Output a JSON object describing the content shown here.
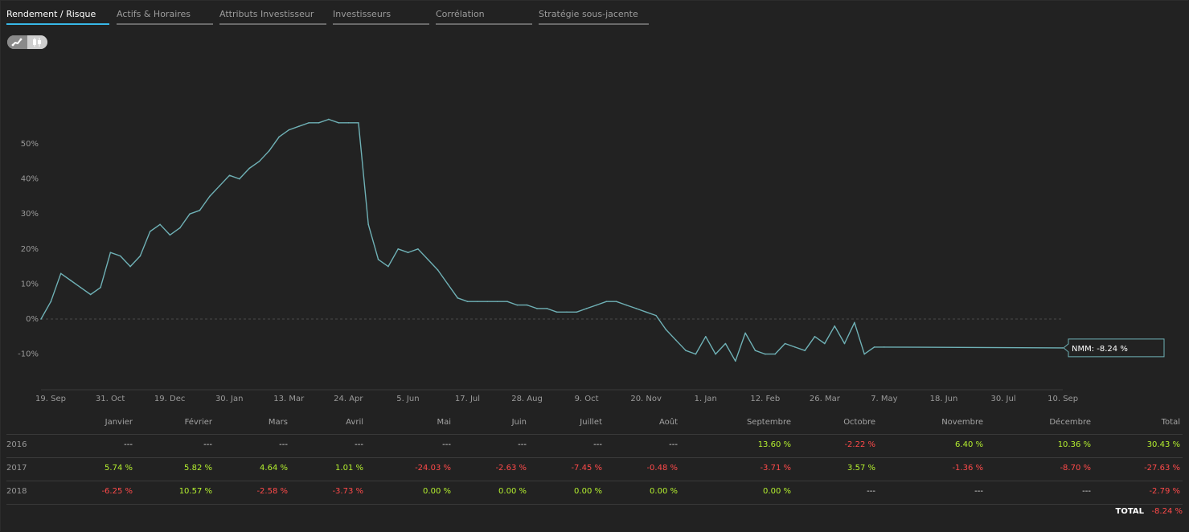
{
  "tabs": [
    {
      "label": "Rendement / Risque",
      "active": true
    },
    {
      "label": "Actifs & Horaires",
      "active": false
    },
    {
      "label": "Attributs Investisseur",
      "active": false
    },
    {
      "label": "Investisseurs",
      "active": false
    },
    {
      "label": "Corrélation",
      "active": false
    },
    {
      "label": "Stratégie sous-jacente",
      "active": false
    }
  ],
  "toggle": {
    "options": [
      "line-chart-icon",
      "candlestick-icon"
    ],
    "selected": "line-chart-icon"
  },
  "colors": {
    "line": "#6fb1b6",
    "positive": "#b5f12f",
    "negative": "#ff4a4a",
    "accent": "#38b8e8"
  },
  "chart_data": {
    "type": "line",
    "series": [
      {
        "x": [
          "2016-09-19",
          "2016-09-26",
          "2016-10-03",
          "2016-10-10",
          "2016-10-17",
          "2016-10-24",
          "2016-10-31",
          "2016-11-07",
          "2016-11-14",
          "2016-11-21",
          "2016-11-28",
          "2016-12-05",
          "2016-12-12",
          "2016-12-19",
          "2016-12-26",
          "2017-01-02",
          "2017-01-09",
          "2017-01-16",
          "2017-01-23",
          "2017-01-30",
          "2017-02-06",
          "2017-02-13",
          "2017-02-20",
          "2017-02-27",
          "2017-03-06",
          "2017-03-13",
          "2017-03-20",
          "2017-03-27",
          "2017-04-03",
          "2017-04-10",
          "2017-04-17",
          "2017-04-24",
          "2017-05-01",
          "2017-05-08",
          "2017-05-15",
          "2017-05-22",
          "2017-05-29",
          "2017-06-05",
          "2017-06-12",
          "2017-06-19",
          "2017-06-26",
          "2017-07-03",
          "2017-07-10",
          "2017-07-17",
          "2017-07-24",
          "2017-07-31",
          "2017-08-07",
          "2017-08-14",
          "2017-08-21",
          "2017-08-28",
          "2017-09-04",
          "2017-09-11",
          "2017-09-18",
          "2017-09-25",
          "2017-10-02",
          "2017-10-09",
          "2017-10-16",
          "2017-10-23",
          "2017-10-30",
          "2017-11-06",
          "2017-11-13",
          "2017-11-20",
          "2017-11-27",
          "2017-12-04",
          "2017-12-11",
          "2017-12-18",
          "2017-12-25",
          "2018-01-01",
          "2018-01-08",
          "2018-01-15",
          "2018-01-22",
          "2018-01-29",
          "2018-02-05",
          "2018-02-12",
          "2018-02-19",
          "2018-02-26",
          "2018-03-05",
          "2018-03-12",
          "2018-03-19",
          "2018-03-26",
          "2018-04-02",
          "2018-04-09",
          "2018-04-16",
          "2018-04-23",
          "2018-04-30",
          "2018-05-07",
          "2018-09-10"
        ],
        "y": [
          0,
          5,
          13,
          11,
          9,
          7,
          9,
          19,
          18,
          15,
          18,
          25,
          27,
          24,
          26,
          30,
          31,
          35,
          38,
          41,
          40,
          43,
          45,
          48,
          52,
          54,
          55,
          56,
          56,
          57,
          56,
          56,
          56,
          27,
          17,
          15,
          20,
          19,
          20,
          17,
          14,
          10,
          6,
          5,
          5,
          5,
          5,
          5,
          4,
          4,
          3,
          3,
          2,
          2,
          2,
          3,
          4,
          5,
          5,
          4,
          3,
          2,
          1,
          -3,
          -6,
          -9,
          -10,
          -5,
          -10,
          -7,
          -12,
          -4,
          -9,
          -10,
          -10,
          -7,
          -8,
          -9,
          -5,
          -7,
          -2,
          -7,
          -1,
          -10,
          -8,
          -8,
          -8.24
        ]
      }
    ],
    "yticks": [
      "50%",
      "40%",
      "30%",
      "20%",
      "10%",
      "0%",
      "-10%"
    ],
    "xticks": [
      "19. Sep",
      "31. Oct",
      "19. Dec",
      "30. Jan",
      "13. Mar",
      "24. Apr",
      "5. Jun",
      "17. Jul",
      "28. Aug",
      "9. Oct",
      "20. Nov",
      "1. Jan",
      "12. Feb",
      "26. Mar",
      "7. May",
      "18. Jun",
      "30. Jul",
      "10. Sep"
    ],
    "ylim": [
      -20,
      70
    ],
    "annotation": {
      "label": "NMM: -8.24 %",
      "value": -8.24
    }
  },
  "table": {
    "headers": [
      "Janvier",
      "Février",
      "Mars",
      "Avril",
      "Mai",
      "Juin",
      "Juillet",
      "Août",
      "Septembre",
      "Octobre",
      "Novembre",
      "Décembre",
      "Total"
    ],
    "rows": [
      {
        "year": "2016",
        "cells": [
          "---",
          "---",
          "---",
          "---",
          "---",
          "---",
          "---",
          "---",
          "13.60 %",
          "-2.22 %",
          "6.40 %",
          "10.36 %",
          "30.43 %"
        ]
      },
      {
        "year": "2017",
        "cells": [
          "5.74 %",
          "5.82 %",
          "4.64 %",
          "1.01 %",
          "-24.03 %",
          "-2.63 %",
          "-7.45 %",
          "-0.48 %",
          "-3.71 %",
          "3.57 %",
          "-1.36 %",
          "-8.70 %",
          "-27.63 %"
        ]
      },
      {
        "year": "2018",
        "cells": [
          "-6.25 %",
          "10.57 %",
          "-2.58 %",
          "-3.73 %",
          "0.00 %",
          "0.00 %",
          "0.00 %",
          "0.00 %",
          "0.00 %",
          "---",
          "---",
          "---",
          "-2.79 %"
        ]
      }
    ],
    "total_label": "TOTAL",
    "total_value": "-8.24 %"
  }
}
